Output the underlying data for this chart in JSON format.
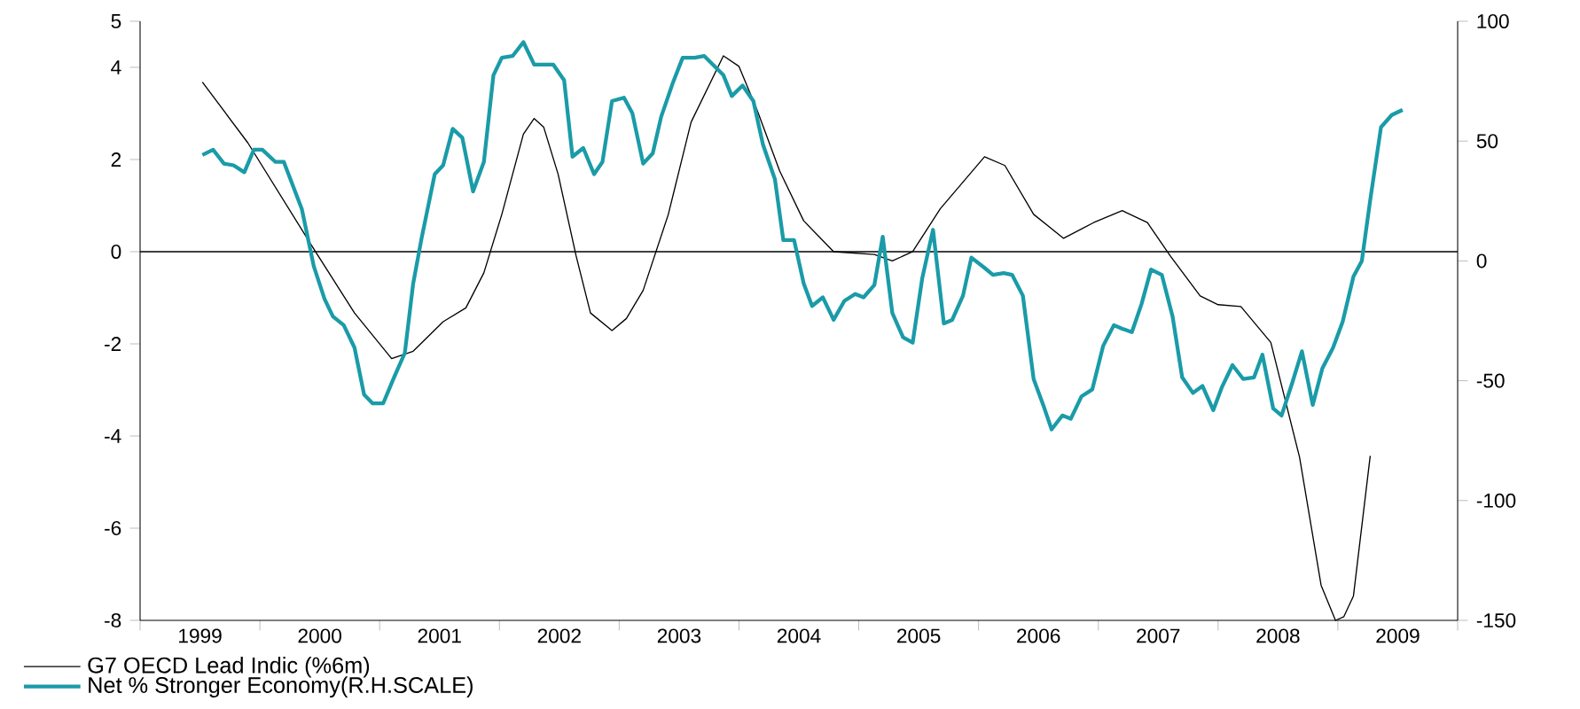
{
  "chart_data": {
    "type": "line",
    "xlim": [
      1999,
      2010
    ],
    "xticks": [
      {
        "value": 1999,
        "label": null
      },
      {
        "value": 2000,
        "label": null
      },
      {
        "value": 2001,
        "label": null
      },
      {
        "value": 2002,
        "label": null
      },
      {
        "value": 2003,
        "label": null
      },
      {
        "value": 2004,
        "label": null
      },
      {
        "value": 2005,
        "label": null
      },
      {
        "value": 2006,
        "label": null
      },
      {
        "value": 2007,
        "label": null
      },
      {
        "value": 2008,
        "label": null
      },
      {
        "value": 2009,
        "label": null
      },
      {
        "value": 2010,
        "label": null
      },
      {
        "value": 1999.5,
        "label": "1999"
      },
      {
        "value": 2000.5,
        "label": "2000"
      },
      {
        "value": 2001.5,
        "label": "2001"
      },
      {
        "value": 2002.5,
        "label": "2002"
      },
      {
        "value": 2003.5,
        "label": "2003"
      },
      {
        "value": 2004.5,
        "label": "2004"
      },
      {
        "value": 2005.5,
        "label": "2005"
      },
      {
        "value": 2006.5,
        "label": "2006"
      },
      {
        "value": 2007.5,
        "label": "2007"
      },
      {
        "value": 2008.5,
        "label": "2008"
      },
      {
        "value": 2009.5,
        "label": "2009"
      }
    ],
    "ylim": [
      -8,
      5
    ],
    "yticks": [
      5,
      4,
      2,
      0,
      -2,
      -4,
      -6,
      -8
    ],
    "y2lim": [
      -150,
      100
    ],
    "y2ticks": [
      100,
      50,
      0,
      -50,
      -100,
      -150
    ],
    "legend": "bottom left",
    "marker": "none",
    "line_style": "solid",
    "grid": false,
    "ref_lines": [
      {
        "axis": "y",
        "value": 0,
        "color": "#000000"
      }
    ],
    "series": [
      {
        "name": "G7 OECD Lead Indic (%6m)",
        "color": "#000000",
        "x": [
          1999.52,
          1999.9,
          2000.45,
          2000.79,
          2001.1,
          2001.28,
          2001.53,
          2001.72,
          2001.87,
          2002.02,
          2002.2,
          2002.29,
          2002.37,
          2002.49,
          2002.64,
          2002.76,
          2002.94,
          2003.06,
          2003.2,
          2003.41,
          2003.6,
          2003.87,
          2004.0,
          2004.15,
          2004.34,
          2004.54,
          2004.79,
          2005.13,
          2005.28,
          2005.45,
          2005.68,
          2006.05,
          2006.22,
          2006.46,
          2006.71,
          2006.96,
          2007.2,
          2007.41,
          2007.6,
          2007.85,
          2008.0,
          2008.19,
          2008.44,
          2008.68,
          2008.86,
          2008.98,
          2009.05,
          2009.13,
          2009.27
        ],
        "values": [
          3.68,
          2.36,
          0.06,
          -1.33,
          -2.32,
          -2.16,
          -1.52,
          -1.22,
          -0.46,
          0.81,
          2.55,
          2.89,
          2.7,
          1.68,
          -0.09,
          -1.33,
          -1.71,
          -1.45,
          -0.84,
          0.81,
          2.81,
          4.25,
          4.02,
          3.08,
          1.75,
          0.67,
          0.0,
          -0.06,
          -0.2,
          0.0,
          0.93,
          2.06,
          1.87,
          0.81,
          0.29,
          0.63,
          0.89,
          0.63,
          -0.09,
          -0.96,
          -1.15,
          -1.19,
          -1.97,
          -4.46,
          -7.24,
          -8.0,
          -7.92,
          -7.47,
          -4.43
        ]
      },
      {
        "name": "Net % Stronger Economy(R.H.SCALE)",
        "color": "#1a9ba8",
        "axis": "y2",
        "x": [
          1999.52,
          1999.61,
          1999.7,
          1999.78,
          1999.87,
          1999.95,
          2000.02,
          2000.13,
          2000.2,
          2000.35,
          2000.45,
          2000.54,
          2000.61,
          2000.7,
          2000.79,
          2000.87,
          2000.94,
          2001.03,
          2001.12,
          2001.21,
          2001.28,
          2001.35,
          2001.46,
          2001.53,
          2001.61,
          2001.69,
          2001.78,
          2001.87,
          2001.95,
          2002.02,
          2002.11,
          2002.2,
          2002.29,
          2002.45,
          2002.54,
          2002.61,
          2002.7,
          2002.79,
          2002.86,
          2002.94,
          2003.04,
          2003.11,
          2003.2,
          2003.28,
          2003.35,
          2003.45,
          2003.53,
          2003.63,
          2003.71,
          2003.87,
          2003.94,
          2004.03,
          2004.12,
          2004.2,
          2004.3,
          2004.37,
          2004.46,
          2004.54,
          2004.61,
          2004.7,
          2004.79,
          2004.88,
          2004.97,
          2005.04,
          2005.13,
          2005.2,
          2005.28,
          2005.37,
          2005.45,
          2005.53,
          2005.62,
          2005.71,
          2005.78,
          2005.87,
          2005.94,
          2006.05,
          2006.12,
          2006.21,
          2006.28,
          2006.37,
          2006.46,
          2006.54,
          2006.61,
          2006.7,
          2006.77,
          2006.86,
          2006.95,
          2007.04,
          2007.13,
          2007.2,
          2007.28,
          2007.36,
          2007.44,
          2007.53,
          2007.62,
          2007.7,
          2007.79,
          2007.87,
          2007.96,
          2008.03,
          2008.12,
          2008.21,
          2008.3,
          2008.37,
          2008.46,
          2008.53,
          2008.62,
          2008.7,
          2008.79,
          2008.87,
          2008.96,
          2009.04,
          2009.13,
          2009.2,
          2009.27,
          2009.36,
          2009.45,
          2009.54
        ],
        "values": [
          44.2,
          46.4,
          40.6,
          39.9,
          37.0,
          46.4,
          46.4,
          41.3,
          41.3,
          21.7,
          -2.2,
          -15.9,
          -23.2,
          -26.8,
          -36.2,
          -55.8,
          -59.4,
          -59.4,
          -48.6,
          -38.4,
          -9.4,
          9.4,
          36.2,
          39.9,
          55.1,
          51.4,
          29.0,
          41.3,
          77.5,
          84.8,
          85.5,
          91.3,
          81.9,
          81.9,
          75.4,
          43.5,
          47.1,
          36.2,
          41.3,
          66.7,
          68.1,
          61.6,
          40.6,
          44.9,
          60.1,
          74.6,
          84.8,
          84.8,
          85.5,
          77.5,
          68.8,
          73.2,
          66.7,
          48.6,
          34.1,
          8.7,
          8.7,
          -9.4,
          -18.8,
          -15.2,
          -24.6,
          -16.7,
          -13.8,
          -15.2,
          -10.1,
          10.1,
          -21.7,
          -31.9,
          -34.1,
          -7.2,
          13.0,
          -26.1,
          -24.6,
          -14.5,
          1.4,
          -2.9,
          -5.8,
          -5.1,
          -5.8,
          -14.5,
          -49.3,
          -60.1,
          -70.3,
          -64.5,
          -65.9,
          -56.5,
          -53.6,
          -35.5,
          -26.8,
          -28.3,
          -29.7,
          -18.1,
          -3.6,
          -5.8,
          -23.2,
          -48.6,
          -55.1,
          -52.2,
          -62.3,
          -52.9,
          -43.5,
          -49.3,
          -48.6,
          -39.1,
          -61.6,
          -64.5,
          -50.7,
          -37.7,
          -60.1,
          -44.9,
          -36.2,
          -25.4,
          -6.5,
          0.0,
          25.4,
          55.8,
          60.9,
          63.0
        ]
      }
    ]
  }
}
